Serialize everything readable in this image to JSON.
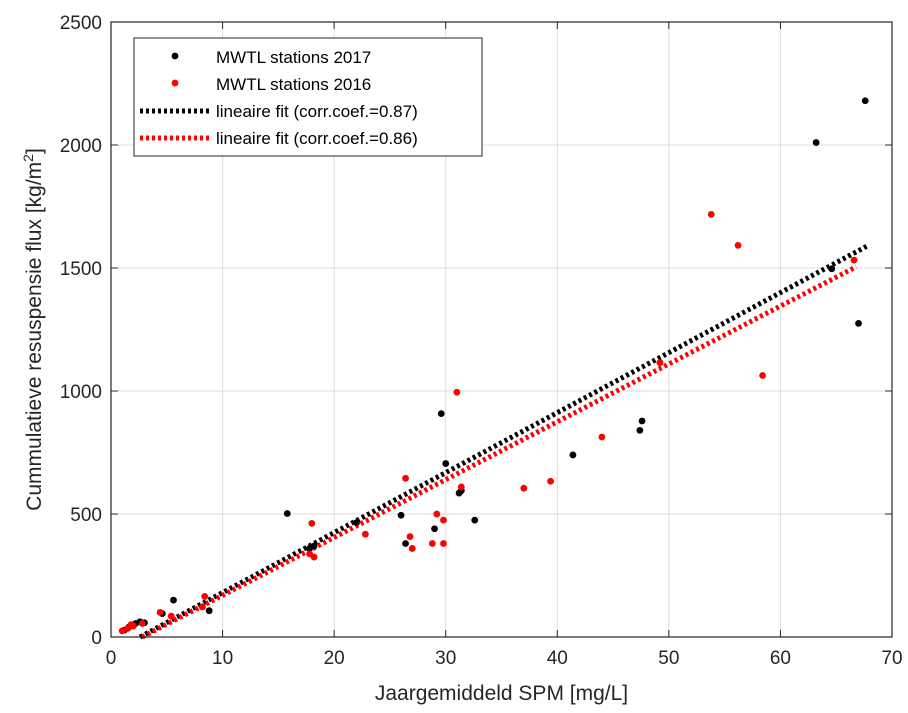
{
  "chart_data": {
    "type": "scatter",
    "xlabel": "Jaargemiddeld SPM [mg/L]",
    "ylabel": {
      "main": "Cummulatieve resuspensie flux [kg/m",
      "sup": "2",
      "tail": "]"
    },
    "xlim": [
      0,
      70
    ],
    "ylim": [
      0,
      2500
    ],
    "xticks": [
      0,
      10,
      20,
      30,
      40,
      50,
      60,
      70
    ],
    "yticks": [
      0,
      500,
      1000,
      1500,
      2000,
      2500
    ],
    "grid": true,
    "legend_position": "top-left",
    "series": [
      {
        "name": "MWTL stations 2017",
        "kind": "points",
        "color": "#000000",
        "points": [
          [
            1.2,
            28
          ],
          [
            1.6,
            40
          ],
          [
            2.2,
            55
          ],
          [
            2.6,
            62
          ],
          [
            3.0,
            58
          ],
          [
            4.6,
            95
          ],
          [
            5.6,
            150
          ],
          [
            8.8,
            107
          ],
          [
            15.8,
            502
          ],
          [
            17.8,
            360
          ],
          [
            18.2,
            370
          ],
          [
            22.0,
            465
          ],
          [
            26.0,
            495
          ],
          [
            26.4,
            380
          ],
          [
            29.0,
            440
          ],
          [
            29.6,
            908
          ],
          [
            30.0,
            705
          ],
          [
            31.2,
            585
          ],
          [
            31.4,
            595
          ],
          [
            32.6,
            475
          ],
          [
            41.4,
            740
          ],
          [
            47.4,
            840
          ],
          [
            47.6,
            878
          ],
          [
            63.2,
            2010
          ],
          [
            64.6,
            1497
          ],
          [
            67.0,
            1275
          ],
          [
            67.6,
            2180
          ]
        ]
      },
      {
        "name": "MWTL stations 2016",
        "kind": "points",
        "color": "#ff0000",
        "points": [
          [
            1.0,
            25
          ],
          [
            1.5,
            35
          ],
          [
            1.8,
            50
          ],
          [
            2.0,
            45
          ],
          [
            2.8,
            55
          ],
          [
            4.4,
            100
          ],
          [
            5.4,
            85
          ],
          [
            8.2,
            122
          ],
          [
            8.4,
            165
          ],
          [
            17.8,
            338
          ],
          [
            18.0,
            462
          ],
          [
            18.2,
            325
          ],
          [
            22.8,
            418
          ],
          [
            26.4,
            645
          ],
          [
            26.8,
            408
          ],
          [
            27.0,
            360
          ],
          [
            28.8,
            380
          ],
          [
            29.2,
            500
          ],
          [
            29.8,
            475
          ],
          [
            29.8,
            380
          ],
          [
            31.0,
            995
          ],
          [
            31.4,
            610
          ],
          [
            37.0,
            605
          ],
          [
            39.4,
            633
          ],
          [
            44.0,
            813
          ],
          [
            49.2,
            1115
          ],
          [
            53.8,
            1718
          ],
          [
            56.2,
            1592
          ],
          [
            58.4,
            1063
          ],
          [
            66.6,
            1532
          ]
        ]
      },
      {
        "name": "lineaire fit (corr.coef.=0.87)",
        "kind": "fit",
        "color": "#000000",
        "line": [
          [
            2.6,
            0
          ],
          [
            67.8,
            1590
          ]
        ]
      },
      {
        "name": "lineaire fit (corr.coef.=0.86)",
        "kind": "fit",
        "color": "#ff0000",
        "line": [
          [
            2.8,
            0
          ],
          [
            66.8,
            1505
          ]
        ]
      }
    ]
  }
}
